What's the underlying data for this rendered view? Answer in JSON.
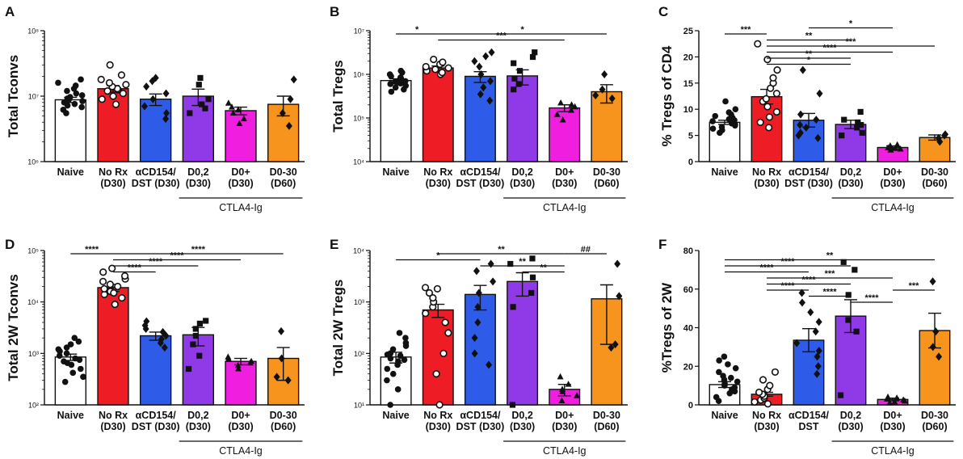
{
  "panel_labels": [
    "A",
    "B",
    "C",
    "D",
    "E",
    "F"
  ],
  "chart_data": [
    {
      "panel": "A",
      "type": "bar",
      "scale": "log",
      "ylabel": "Total Tconvs",
      "ylim": [
        1000000,
        100000000
      ],
      "ytick_labels": [
        "10⁶",
        "10⁷",
        "10⁸"
      ],
      "categories": [
        "Naive",
        "No Rx (D30)",
        "αCD154/ DST (D30)",
        "D0,2 (D30)",
        "D0+ (D30)",
        "D0-30 (D60)"
      ],
      "category_lines": [
        [
          "Naive"
        ],
        [
          "No Rx",
          "(D30)"
        ],
        [
          "αCD154/",
          "DST (D30)"
        ],
        [
          "D0,2",
          "(D30)"
        ],
        [
          "D0+",
          "(D30)"
        ],
        [
          "D0-30",
          "(D60)"
        ]
      ],
      "group_bracket_label": "CTLA4-Ig",
      "values": [
        8800000,
        13000000,
        9000000,
        10000000,
        6000000,
        7500000
      ],
      "errors": [
        800000,
        1500000,
        1800000,
        2800000,
        800000,
        2500000
      ],
      "points": [
        [
          5500000,
          6200000,
          6800000,
          7200000,
          7600000,
          8000000,
          8400000,
          8800000,
          9200000,
          9700000,
          10300000,
          11000000,
          12000000,
          13000000,
          14500000,
          16000000,
          18000000
        ],
        [
          7500000,
          9000000,
          10000000,
          11000000,
          12000000,
          12500000,
          13000000,
          14000000,
          15000000,
          16000000,
          18000000,
          21000000,
          30000000
        ],
        [
          4500000,
          5500000,
          7000000,
          9000000,
          11000000,
          14000000,
          17000000,
          19000000
        ],
        [
          5500000,
          6500000,
          7500000,
          9000000,
          15000000,
          19000000
        ],
        [
          3800000,
          4500000,
          5500000,
          6200000,
          6800000,
          7800000
        ],
        [
          3500000,
          5500000,
          9000000,
          18000000
        ]
      ],
      "significance": []
    },
    {
      "panel": "B",
      "type": "bar",
      "scale": "log",
      "ylabel": "Total Tregs",
      "ylim": [
        10000,
        10000000
      ],
      "ytick_labels": [
        "10⁴",
        "10⁵",
        "10⁶",
        "10⁷"
      ],
      "categories": [
        "Naive",
        "No Rx (D30)",
        "αCD154/ DST (D30)",
        "D0,2 (D30)",
        "D0+ (D30)",
        "D0-30 (D60)"
      ],
      "category_lines": [
        [
          "Naive"
        ],
        [
          "No Rx",
          "(D30)"
        ],
        [
          "αCD154/",
          "DST (D30)"
        ],
        [
          "D0,2",
          "(D30)"
        ],
        [
          "D0+",
          "(D30)"
        ],
        [
          "D0-30",
          "(D60)"
        ]
      ],
      "group_bracket_label": "CTLA4-Ig",
      "values": [
        720000,
        1400000,
        900000,
        920000,
        170000,
        400000
      ],
      "errors": [
        70000,
        150000,
        250000,
        350000,
        30000,
        180000
      ],
      "points": [
        [
          400000,
          450000,
          500000,
          550000,
          600000,
          650000,
          700000,
          750000,
          800000,
          850000,
          900000,
          1000000,
          1100000,
          1200000,
          620000,
          680000
        ],
        [
          1000000,
          1100000,
          1200000,
          1300000,
          1400000,
          1500000,
          1700000,
          1900000,
          2200000
        ],
        [
          250000,
          350000,
          500000,
          700000,
          1000000,
          1500000,
          2000000,
          2600000,
          3200000
        ],
        [
          450000,
          600000,
          800000,
          1200000,
          1800000,
          2500000,
          3200000
        ],
        [
          90000,
          120000,
          150000,
          180000,
          200000,
          220000
        ],
        [
          280000,
          330000,
          450000,
          1000000
        ]
      ],
      "significance": [
        {
          "from": 0,
          "to": 1,
          "label": "*",
          "level": 0
        },
        {
          "from": 1,
          "to": 4,
          "label": "***",
          "level": 1
        },
        {
          "from": 1,
          "to": 5,
          "label": "*",
          "level": 0
        }
      ]
    },
    {
      "panel": "C",
      "type": "bar",
      "scale": "linear",
      "ylabel": "% Tregs of CD4",
      "ylim": [
        0,
        25
      ],
      "yticks": [
        0,
        5,
        10,
        15,
        20,
        25
      ],
      "categories": [
        "Naive",
        "No Rx (D30)",
        "αCD154/ DST (D30)",
        "D0,2 (D30)",
        "D0+ (D30)",
        "D0-30 (D60)"
      ],
      "category_lines": [
        [
          "Naive"
        ],
        [
          "No Rx",
          "(D30)"
        ],
        [
          "αCD154/",
          "DST (D30)"
        ],
        [
          "D0,2",
          "(D30)"
        ],
        [
          "D0+",
          "(D30)"
        ],
        [
          "D0-30",
          "(D60)"
        ]
      ],
      "group_bracket_label": "CTLA4-Ig",
      "values": [
        7.5,
        12.4,
        7.9,
        7.1,
        2.7,
        4.6
      ],
      "errors": [
        0.4,
        1.4,
        1.3,
        0.8,
        0.3,
        0.5
      ],
      "points": [
        [
          5.5,
          6.0,
          6.3,
          6.6,
          6.9,
          7.1,
          7.3,
          7.5,
          7.7,
          7.9,
          8.1,
          8.4,
          8.7,
          9.0,
          9.4,
          10.0,
          11.5
        ],
        [
          6.5,
          7.5,
          8.5,
          9.5,
          10.5,
          11.5,
          12.0,
          13.0,
          14.0,
          15.0,
          16.0,
          17.5,
          22.5,
          19.5
        ],
        [
          4.5,
          5.0,
          5.5,
          6.5,
          7.0,
          8.0,
          9.0,
          13.0,
          17.5
        ],
        [
          5.0,
          5.5,
          6.5,
          7.0,
          7.5,
          8.0,
          9.5
        ],
        [
          2.2,
          2.4,
          2.6,
          2.8,
          3.0,
          3.2,
          2.5
        ],
        [
          3.8,
          4.5,
          5.0,
          5.2
        ]
      ],
      "significance": [
        {
          "from": 0,
          "to": 1,
          "label": "***",
          "level": 0
        },
        {
          "from": 1,
          "to": 3,
          "label": "*",
          "level": 5
        },
        {
          "from": 1,
          "to": 3,
          "label": "**",
          "level": 4
        },
        {
          "from": 1,
          "to": 4,
          "label": "****",
          "level": 3
        },
        {
          "from": 1,
          "to": 5,
          "label": "***",
          "level": 2
        },
        {
          "from": 1,
          "to": 3,
          "label": "**",
          "level": 1
        },
        {
          "from": 2,
          "to": 4,
          "label": "*",
          "level": -1
        }
      ]
    },
    {
      "panel": "D",
      "type": "bar",
      "scale": "log",
      "ylabel": "Total 2W Tconvs",
      "ylim": [
        100,
        100000
      ],
      "ytick_labels": [
        "10²",
        "10³",
        "10⁴",
        "10⁵"
      ],
      "categories": [
        "Naive",
        "No Rx (D30)",
        "αCD154/ DST (D30)",
        "D0,2 (D30)",
        "D0+ (D30)",
        "D0-30 (D60)"
      ],
      "category_lines": [
        [
          "Naive"
        ],
        [
          "No Rx",
          "(D30)"
        ],
        [
          "αCD154/",
          "DST (D30)"
        ],
        [
          "D0,2",
          "(D30)"
        ],
        [
          "D0+",
          "(D30)"
        ],
        [
          "D0-30",
          "(D60)"
        ]
      ],
      "group_bracket_label": "CTLA4-Ig",
      "values": [
        850,
        19000,
        2200,
        2300,
        700,
        800
      ],
      "errors": [
        120,
        3000,
        400,
        900,
        100,
        500
      ],
      "points": [
        [
          280,
          350,
          420,
          500,
          600,
          700,
          800,
          900,
          1000,
          1100,
          1200,
          1300,
          1500,
          1700,
          2000,
          650,
          750
        ],
        [
          9000,
          12000,
          14000,
          16000,
          18000,
          20000,
          22000,
          25000,
          28000,
          32000,
          38000,
          45000,
          15000
        ],
        [
          1300,
          1600,
          1900,
          2200,
          2600,
          3000,
          3500,
          4200
        ],
        [
          500,
          900,
          1500,
          2200,
          3000,
          3800,
          4300
        ],
        [
          500,
          580,
          650,
          700,
          780,
          850
        ],
        [
          300,
          350,
          800,
          2700
        ]
      ],
      "significance": [
        {
          "from": 0,
          "to": 1,
          "label": "****",
          "level": 0
        },
        {
          "from": 1,
          "to": 2,
          "label": "****",
          "level": 3
        },
        {
          "from": 1,
          "to": 3,
          "label": "****",
          "level": 2
        },
        {
          "from": 1,
          "to": 4,
          "label": "****",
          "level": 1
        },
        {
          "from": 1,
          "to": 5,
          "label": "****",
          "level": 0
        }
      ]
    },
    {
      "panel": "E",
      "type": "bar",
      "scale": "log",
      "ylabel": "Total 2W Tregs",
      "ylim": [
        10,
        10000
      ],
      "ytick_labels": [
        "10¹",
        "10²",
        "10³",
        "10⁴"
      ],
      "categories": [
        "Naive",
        "No Rx (D30)",
        "αCD154/ DST (D30)",
        "D0,2 (D30)",
        "D0+ (D30)",
        "D0-30 (D60)"
      ],
      "category_lines": [
        [
          "Naive"
        ],
        [
          "No Rx",
          "(D30)"
        ],
        [
          "αCD154/",
          "DST (D30)"
        ],
        [
          "D0,2",
          "(D30)"
        ],
        [
          "D0+",
          "(D30)"
        ],
        [
          "D0-30",
          "(D60)"
        ]
      ],
      "group_bracket_label": "CTLA4-Ig",
      "values": [
        85,
        700,
        1400,
        2500,
        20,
        1150
      ],
      "errors": [
        20,
        200,
        700,
        1200,
        5,
        1000
      ],
      "points": [
        [
          10,
          20,
          30,
          40,
          50,
          60,
          70,
          80,
          90,
          100,
          120,
          140,
          160,
          200,
          250,
          75,
          95
        ],
        [
          10,
          40,
          100,
          250,
          400,
          600,
          800,
          1000,
          1200,
          1500,
          1800,
          1900
        ],
        [
          60,
          100,
          200,
          400,
          800,
          1500,
          2500,
          4000,
          5500
        ],
        [
          10,
          800,
          1500,
          3000,
          5500,
          7000
        ],
        [
          12,
          15,
          18,
          20,
          25,
          35
        ],
        [
          130,
          150,
          1300,
          5500
        ]
      ],
      "significance": [
        {
          "from": 0,
          "to": 2,
          "label": "*",
          "level": 1
        },
        {
          "from": 1,
          "to": 4,
          "label": "**",
          "level": 0
        },
        {
          "from": 2,
          "to": 4,
          "label": "**",
          "level": 2
        },
        {
          "from": 3,
          "to": 4,
          "label": "**",
          "level": 3
        },
        {
          "from": 4,
          "to": 5,
          "label": "##",
          "level": 0
        }
      ]
    },
    {
      "panel": "F",
      "type": "bar",
      "scale": "linear",
      "ylabel": "%Tregs of 2W",
      "ylim": [
        0,
        80
      ],
      "yticks": [
        0,
        20,
        40,
        60,
        80
      ],
      "categories": [
        "Naive",
        "No Rx (D30)",
        "αCD154/ DST",
        "D0,2 (D30)",
        "D0+ (D30)",
        "D0-30 (D60)"
      ],
      "category_lines": [
        [
          "Naive"
        ],
        [
          "No Rx",
          "(D30)"
        ],
        [
          "αCD154/",
          "DST"
        ],
        [
          "D0,2",
          "(D30)"
        ],
        [
          "D0+",
          "(D30)"
        ],
        [
          "D0-30",
          "(D60)"
        ]
      ],
      "group_bracket_label": "CTLA4-Ig",
      "values": [
        10.5,
        5.5,
        33.5,
        46,
        2.8,
        38.5
      ],
      "errors": [
        1.5,
        1.0,
        6.0,
        8.5,
        0.7,
        9.0
      ],
      "points": [
        [
          2,
          4,
          6,
          7,
          8,
          9,
          10,
          11,
          12,
          13,
          14,
          15,
          17,
          19,
          21,
          23,
          25
        ],
        [
          0.5,
          1.5,
          2.5,
          3.5,
          4.5,
          5.5,
          6.5,
          8,
          10,
          13,
          17
        ],
        [
          16,
          20,
          25,
          28,
          32,
          38,
          43,
          48,
          53,
          58
        ],
        [
          5,
          38,
          44,
          57,
          70,
          74
        ],
        [
          1,
          1.5,
          2,
          2.5,
          3,
          3.5,
          4
        ],
        [
          25,
          30,
          38,
          64
        ]
      ],
      "significance": [
        {
          "from": 1,
          "to": 2,
          "label": "****",
          "level": 6
        },
        {
          "from": 2,
          "to": 3,
          "label": "****",
          "level": 7
        },
        {
          "from": 1,
          "to": 3,
          "label": "****",
          "level": 5
        },
        {
          "from": 3,
          "to": 4,
          "label": "****",
          "level": 8
        },
        {
          "from": 4,
          "to": 5,
          "label": "***",
          "level": 6
        },
        {
          "from": 1,
          "to": 4,
          "label": "***",
          "level": 4
        },
        {
          "from": 0,
          "to": 2,
          "label": "****",
          "level": 3
        },
        {
          "from": 0,
          "to": 3,
          "label": "****",
          "level": 2
        },
        {
          "from": 0,
          "to": 5,
          "label": "**",
          "level": 1
        }
      ]
    }
  ],
  "colors": {
    "bars": [
      "#ffffff",
      "#ee1c24",
      "#2e5be8",
      "#8f3ae6",
      "#f01fe0",
      "#f7941d"
    ],
    "axis": "#111111"
  },
  "markers": [
    "circle",
    "circle-open",
    "diamond",
    "square",
    "triangle",
    "diamond"
  ]
}
